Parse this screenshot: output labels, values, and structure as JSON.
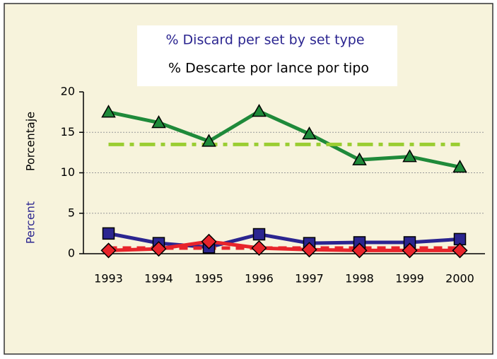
{
  "chart_data": {
    "type": "line",
    "title": "% Discard per set by set type",
    "subtitle": "% Descarte por lance por tipo",
    "y_label": "Percent",
    "y_label_2": "Porcentaje",
    "categories": [
      "1993",
      "1994",
      "1995",
      "1996",
      "1997",
      "1998",
      "1999",
      "2000"
    ],
    "series": [
      {
        "color": "#1f8a3a",
        "marker": "triangle",
        "style": "solid",
        "values": [
          17.5,
          16.2,
          13.9,
          17.6,
          14.8,
          11.6,
          12.0,
          10.7
        ]
      },
      {
        "color": "#9acd32",
        "marker": "none",
        "style": "dashdot",
        "values": [
          13.5,
          13.5,
          13.5,
          13.5,
          13.5,
          13.5,
          13.5,
          13.5
        ]
      },
      {
        "color": "#2b2590",
        "marker": "square",
        "style": "solid",
        "values": [
          2.5,
          1.3,
          0.8,
          2.4,
          1.3,
          1.4,
          1.4,
          1.8
        ]
      },
      {
        "color": "#e8242b",
        "marker": "diamond",
        "style": "solid",
        "values": [
          0.4,
          0.6,
          1.5,
          0.7,
          0.5,
          0.4,
          0.4,
          0.4
        ]
      },
      {
        "color": "#e8242b",
        "marker": "none",
        "style": "dash",
        "values": [
          0.7,
          0.7,
          0.7,
          0.7,
          0.7,
          0.7,
          0.7,
          0.7
        ]
      }
    ],
    "ylim": [
      0,
      20
    ],
    "yticks": [
      0,
      5,
      10,
      15,
      20
    ],
    "grid": true
  }
}
